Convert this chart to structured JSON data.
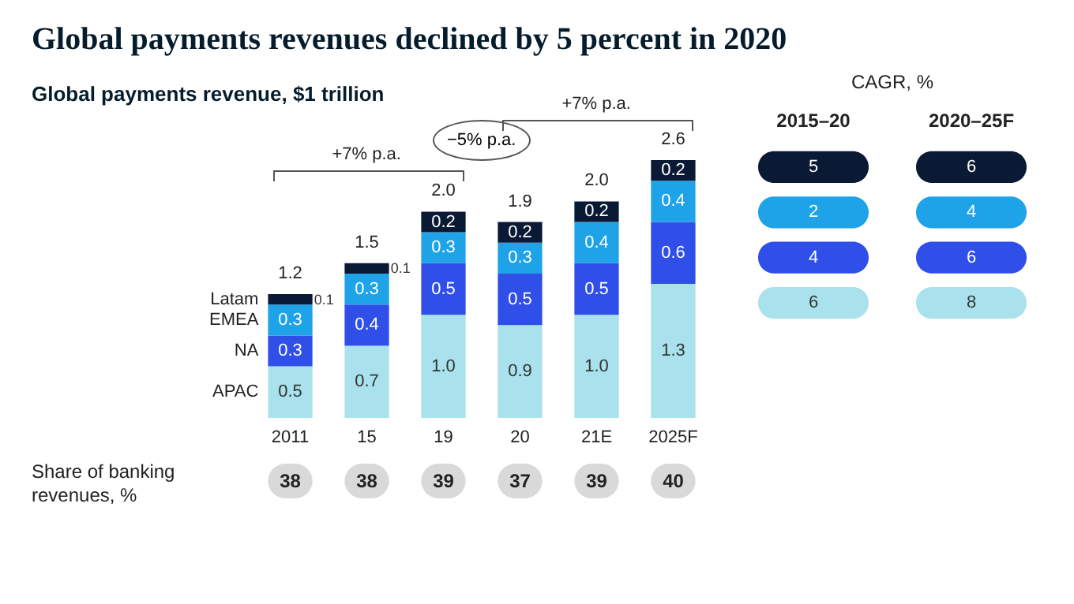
{
  "chart_data": [
    {
      "type": "bar",
      "title": "Global payments revenues declined by 5 percent in 2020",
      "subtitle": "Global payments revenue, $1 trillion",
      "categories": [
        "2011",
        "15",
        "19",
        "20",
        "21E",
        "2025F"
      ],
      "stacked": true,
      "series": [
        {
          "name": "APAC",
          "color": "#a9e1ec",
          "values": [
            0.5,
            0.7,
            1.0,
            0.9,
            1.0,
            1.3
          ],
          "value_labels": [
            "0.5",
            "0.7",
            "1.0",
            "0.9",
            "1.0",
            "1.3"
          ]
        },
        {
          "name": "NA",
          "color": "#2f4fe8",
          "values": [
            0.3,
            0.4,
            0.5,
            0.5,
            0.5,
            0.6
          ],
          "value_labels": [
            "0.3",
            "0.4",
            "0.5",
            "0.5",
            "0.5",
            "0.6"
          ]
        },
        {
          "name": "EMEA",
          "color": "#1fa3e8",
          "values": [
            0.3,
            0.3,
            0.3,
            0.3,
            0.4,
            0.4
          ],
          "value_labels": [
            "0.3",
            "0.3",
            "0.3",
            "0.3",
            "0.4",
            "0.4"
          ]
        },
        {
          "name": "Latam",
          "color": "#0a1a35",
          "values": [
            0.1,
            0.1,
            0.2,
            0.2,
            0.2,
            0.2
          ],
          "value_labels": [
            "0.1",
            "0.1",
            "0.2",
            "0.2",
            "0.2",
            "0.2"
          ]
        }
      ],
      "totals": [
        "1.2",
        "1.5",
        "2.0",
        "1.9",
        "2.0",
        "2.6"
      ],
      "annotations": [
        "+7% p.a.",
        "−5% p.a.",
        "+7% p.a."
      ]
    },
    {
      "type": "other",
      "title": "CAGR, %",
      "categories": [
        "2015–20",
        "2020–25F"
      ],
      "data_labels": true,
      "series": [
        {
          "color": "#0a1a35",
          "values": [
            5,
            6
          ]
        },
        {
          "color": "#1fa3e8",
          "values": [
            2,
            4
          ]
        },
        {
          "color": "#2f4fe8",
          "values": [
            4,
            6
          ]
        },
        {
          "color": "#a9e1ec",
          "values": [
            6,
            8
          ]
        }
      ]
    },
    {
      "type": "other",
      "title": "Share of banking revenues, %",
      "values": [
        38,
        38,
        39,
        37,
        39,
        40
      ],
      "color": "#d9d9d9",
      "data_labels": true
    }
  ]
}
